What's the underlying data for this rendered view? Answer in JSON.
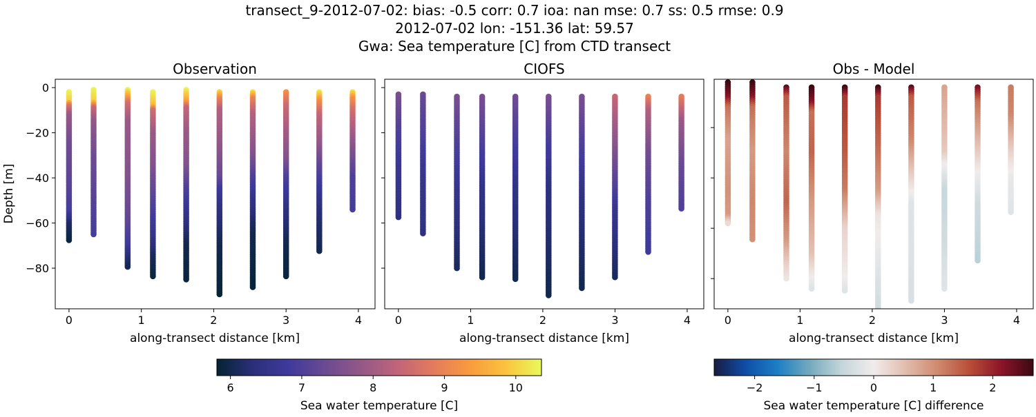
{
  "header": {
    "line1": "transect_9-2012-07-02: bias: -0.5  corr: 0.7  ioa: nan  mse: 0.7  ss: 0.5  rmse: 0.9",
    "line2": "2012-07-02 lon: -151.36 lat: 59.57",
    "line3": "Gwa: Sea temperature [C] from CTD transect"
  },
  "chart_data": [
    {
      "type": "scatter",
      "title": "Observation",
      "xlabel": "along-transect distance [km]",
      "ylabel": "Depth [m]",
      "xlim": [
        -0.19,
        4.23
      ],
      "ylim": [
        -98,
        3.7
      ],
      "xticks": [
        0,
        1,
        2,
        3,
        4
      ],
      "yticks": [
        0,
        -20,
        -40,
        -60,
        -80
      ],
      "ytick_labels": [
        "0",
        "−20",
        "−40",
        "−60",
        "−80"
      ],
      "colormap": "thermal",
      "clim": [
        5.81,
        10.36
      ],
      "stations": [
        {
          "x": 0.0,
          "profile": [
            [
              -2,
              10.3
            ],
            [
              -6,
              10.0
            ],
            [
              -8,
              8.8
            ],
            [
              -12,
              7.9
            ],
            [
              -25,
              7.4
            ],
            [
              -45,
              7.1
            ],
            [
              -55,
              6.9
            ],
            [
              -60,
              6.2
            ],
            [
              -68,
              5.9
            ]
          ]
        },
        {
          "x": 0.34,
          "profile": [
            [
              -1,
              10.3
            ],
            [
              -6,
              10.0
            ],
            [
              -9,
              8.5
            ],
            [
              -15,
              7.8
            ],
            [
              -30,
              7.4
            ],
            [
              -50,
              7.1
            ],
            [
              -65,
              6.9
            ]
          ]
        },
        {
          "x": 0.81,
          "profile": [
            [
              -1,
              10.3
            ],
            [
              -4,
              9.5
            ],
            [
              -7,
              8.6
            ],
            [
              -15,
              7.9
            ],
            [
              -40,
              7.6
            ],
            [
              -60,
              7.2
            ],
            [
              -70,
              6.8
            ],
            [
              -75,
              6.3
            ],
            [
              -80,
              6.0
            ]
          ]
        },
        {
          "x": 1.16,
          "profile": [
            [
              -2,
              10.3
            ],
            [
              -8,
              9.8
            ],
            [
              -10,
              8.6
            ],
            [
              -20,
              7.9
            ],
            [
              -35,
              7.6
            ],
            [
              -50,
              7.1
            ],
            [
              -65,
              6.6
            ],
            [
              -75,
              6.1
            ],
            [
              -84,
              5.9
            ]
          ]
        },
        {
          "x": 1.62,
          "profile": [
            [
              -1,
              10.3
            ],
            [
              -6,
              9.5
            ],
            [
              -9,
              8.4
            ],
            [
              -20,
              7.9
            ],
            [
              -35,
              7.6
            ],
            [
              -45,
              7.0
            ],
            [
              -60,
              6.4
            ],
            [
              -70,
              6.0
            ],
            [
              -85,
              5.9
            ]
          ]
        },
        {
          "x": 2.08,
          "profile": [
            [
              -2,
              10.0
            ],
            [
              -5,
              9.0
            ],
            [
              -10,
              8.2
            ],
            [
              -25,
              7.8
            ],
            [
              -40,
              7.3
            ],
            [
              -45,
              6.8
            ],
            [
              -55,
              6.4
            ],
            [
              -70,
              6.0
            ],
            [
              -92,
              5.85
            ]
          ]
        },
        {
          "x": 2.54,
          "profile": [
            [
              -2,
              10.1
            ],
            [
              -5,
              9.0
            ],
            [
              -12,
              8.2
            ],
            [
              -30,
              7.6
            ],
            [
              -40,
              7.0
            ],
            [
              -50,
              6.5
            ],
            [
              -65,
              6.0
            ],
            [
              -89,
              5.85
            ]
          ]
        },
        {
          "x": 3.0,
          "profile": [
            [
              -2,
              9.2
            ],
            [
              -8,
              8.5
            ],
            [
              -20,
              8.0
            ],
            [
              -32,
              7.6
            ],
            [
              -40,
              7.0
            ],
            [
              -55,
              6.4
            ],
            [
              -70,
              6.0
            ],
            [
              -84,
              5.9
            ]
          ]
        },
        {
          "x": 3.46,
          "profile": [
            [
              -2,
              10.2
            ],
            [
              -6,
              9.2
            ],
            [
              -12,
              8.4
            ],
            [
              -25,
              7.8
            ],
            [
              -35,
              7.2
            ],
            [
              -45,
              6.7
            ],
            [
              -55,
              6.3
            ],
            [
              -73,
              6.0
            ]
          ]
        },
        {
          "x": 3.92,
          "profile": [
            [
              -2,
              10.1
            ],
            [
              -5,
              9.2
            ],
            [
              -10,
              8.6
            ],
            [
              -20,
              8.0
            ],
            [
              -30,
              7.5
            ],
            [
              -40,
              7.0
            ],
            [
              -54,
              6.9
            ]
          ]
        }
      ]
    },
    {
      "type": "scatter",
      "title": "CIOFS",
      "xlabel": "along-transect distance [km]",
      "xlim": [
        -0.19,
        4.23
      ],
      "ylim": [
        -98,
        3.7
      ],
      "xticks": [
        0,
        1,
        2,
        3,
        4
      ],
      "yticks": [
        0,
        -20,
        -40,
        -60,
        -80
      ],
      "colormap": "thermal",
      "clim": [
        5.81,
        10.36
      ],
      "stations": [
        {
          "x": 0.0,
          "profile": [
            [
              -3,
              7.5
            ],
            [
              -20,
              7.0
            ],
            [
              -35,
              6.7
            ],
            [
              -58,
              6.4
            ]
          ]
        },
        {
          "x": 0.34,
          "profile": [
            [
              -3,
              7.3
            ],
            [
              -20,
              7.0
            ],
            [
              -40,
              6.6
            ],
            [
              -65,
              6.4
            ]
          ]
        },
        {
          "x": 0.81,
          "profile": [
            [
              -4,
              7.5
            ],
            [
              -25,
              7.0
            ],
            [
              -45,
              6.6
            ],
            [
              -80,
              6.1
            ]
          ]
        },
        {
          "x": 1.16,
          "profile": [
            [
              -4,
              7.5
            ],
            [
              -25,
              7.0
            ],
            [
              -45,
              6.5
            ],
            [
              -84,
              6.0
            ]
          ]
        },
        {
          "x": 1.62,
          "profile": [
            [
              -4,
              7.4
            ],
            [
              -25,
              6.9
            ],
            [
              -45,
              6.5
            ],
            [
              -85,
              6.0
            ]
          ]
        },
        {
          "x": 2.08,
          "profile": [
            [
              -4,
              7.5
            ],
            [
              -25,
              6.9
            ],
            [
              -45,
              6.4
            ],
            [
              -92,
              6.0
            ]
          ]
        },
        {
          "x": 2.54,
          "profile": [
            [
              -4,
              7.5
            ],
            [
              -30,
              6.9
            ],
            [
              -50,
              6.4
            ],
            [
              -89,
              6.0
            ]
          ]
        },
        {
          "x": 3.0,
          "profile": [
            [
              -4,
              8.4
            ],
            [
              -25,
              7.7
            ],
            [
              -45,
              7.0
            ],
            [
              -55,
              6.6
            ],
            [
              -84,
              6.1
            ]
          ]
        },
        {
          "x": 3.46,
          "profile": [
            [
              -4,
              9.0
            ],
            [
              -10,
              8.2
            ],
            [
              -30,
              7.4
            ],
            [
              -50,
              7.0
            ],
            [
              -73,
              6.8
            ]
          ]
        },
        {
          "x": 3.92,
          "profile": [
            [
              -4,
              8.9
            ],
            [
              -15,
              7.9
            ],
            [
              -35,
              7.3
            ],
            [
              -54,
              7.0
            ]
          ]
        }
      ]
    },
    {
      "type": "scatter",
      "title": "Obs - Model",
      "xlabel": "along-transect distance [km]",
      "xlim": [
        -0.19,
        4.23
      ],
      "ylim": [
        -92,
        -0.8
      ],
      "xticks": [
        0,
        1,
        2,
        3,
        4
      ],
      "yticks": [
        -20,
        -40,
        -60,
        -80
      ],
      "colormap": "balance",
      "clim": [
        -2.68,
        2.68
      ],
      "stations": [
        {
          "x": 0.0,
          "profile": [
            [
              -2,
              2.7
            ],
            [
              -8,
              2.2
            ],
            [
              -12,
              1.3
            ],
            [
              -25,
              0.8
            ],
            [
              -45,
              1.0
            ],
            [
              -55,
              0.9
            ],
            [
              -58,
              0.2
            ]
          ]
        },
        {
          "x": 0.34,
          "profile": [
            [
              -2,
              2.7
            ],
            [
              -8,
              2.2
            ],
            [
              -12,
              1.3
            ],
            [
              -30,
              0.9
            ],
            [
              -50,
              1.1
            ],
            [
              -65,
              1.0
            ]
          ]
        },
        {
          "x": 0.81,
          "profile": [
            [
              -4,
              2.5
            ],
            [
              -8,
              1.5
            ],
            [
              -30,
              1.1
            ],
            [
              -50,
              1.4
            ],
            [
              -65,
              0.9
            ],
            [
              -75,
              0.3
            ],
            [
              -80,
              0.1
            ]
          ]
        },
        {
          "x": 1.16,
          "profile": [
            [
              -4,
              2.7
            ],
            [
              -10,
              2.2
            ],
            [
              -14,
              1.3
            ],
            [
              -30,
              1.4
            ],
            [
              -50,
              0.9
            ],
            [
              -70,
              0.5
            ],
            [
              -80,
              0
            ],
            [
              -84,
              -0.2
            ]
          ]
        },
        {
          "x": 1.62,
          "profile": [
            [
              -4,
              2.7
            ],
            [
              -8,
              1.8
            ],
            [
              -30,
              1.5
            ],
            [
              -45,
              1.2
            ],
            [
              -60,
              0.3
            ],
            [
              -80,
              0
            ],
            [
              -85,
              -0.2
            ]
          ]
        },
        {
          "x": 2.08,
          "profile": [
            [
              -4,
              2.7
            ],
            [
              -8,
              1.8
            ],
            [
              -30,
              1.3
            ],
            [
              -45,
              0.9
            ],
            [
              -55,
              0.1
            ],
            [
              -70,
              -0.1
            ],
            [
              -92,
              -0.4
            ]
          ]
        },
        {
          "x": 2.54,
          "profile": [
            [
              -4,
              2.5
            ],
            [
              -8,
              1.5
            ],
            [
              -25,
              1.1
            ],
            [
              -40,
              0.3
            ],
            [
              -50,
              -0.2
            ],
            [
              -89,
              -0.3
            ]
          ]
        },
        {
          "x": 3.0,
          "profile": [
            [
              -4,
              0.8
            ],
            [
              -30,
              0.4
            ],
            [
              -35,
              0
            ],
            [
              -45,
              -0.5
            ],
            [
              -65,
              -0.4
            ],
            [
              -84,
              -0.2
            ]
          ]
        },
        {
          "x": 3.46,
          "profile": [
            [
              -4,
              2.3
            ],
            [
              -10,
              1.3
            ],
            [
              -25,
              0.6
            ],
            [
              -38,
              0
            ],
            [
              -50,
              -0.4
            ],
            [
              -73,
              -0.6
            ]
          ]
        },
        {
          "x": 3.92,
          "profile": [
            [
              -4,
              1.2
            ],
            [
              -15,
              1.1
            ],
            [
              -30,
              0.3
            ],
            [
              -40,
              -0.1
            ],
            [
              -54,
              -0.2
            ]
          ]
        }
      ]
    }
  ],
  "colorbars": [
    {
      "label": "Sea water temperature [C]",
      "colormap": "thermal",
      "range": [
        5.81,
        10.36
      ],
      "ticks": [
        6,
        7,
        8,
        9,
        10
      ],
      "tick_labels": [
        "6",
        "7",
        "8",
        "9",
        "10"
      ]
    },
    {
      "label": "Sea water temperature [C] difference",
      "colormap": "balance",
      "range": [
        -2.68,
        2.68
      ],
      "ticks": [
        -2,
        -1,
        0,
        1,
        2
      ],
      "tick_labels": [
        "−2",
        "−1",
        "0",
        "1",
        "2"
      ]
    }
  ],
  "colormaps": {
    "thermal": [
      "#042333",
      "#2b2f7a",
      "#3f3a9c",
      "#6a4a93",
      "#955888",
      "#c0647a",
      "#e37b5d",
      "#f99a3e",
      "#fbc23f",
      "#e8fa5b"
    ],
    "balance": [
      "#181c43",
      "#0f4fa8",
      "#1d7fc4",
      "#75aabe",
      "#c4d6db",
      "#f1ecec",
      "#e2bcae",
      "#cf8a6f",
      "#b84e38",
      "#8c1429",
      "#3c0912"
    ]
  }
}
